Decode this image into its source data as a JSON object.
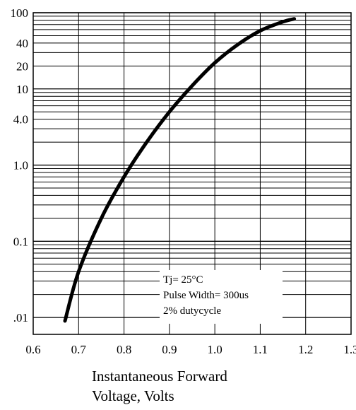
{
  "chart_data": {
    "type": "line",
    "xlabel_lines": [
      "Instantaneous Forward",
      "Voltage, Volts"
    ],
    "x_ticks": [
      "0.6",
      "0.7",
      "0.8",
      "0.9",
      "1.0",
      "1.1",
      "1.2",
      "1.3"
    ],
    "y_ticks": [
      {
        "value": 100,
        "label": "100"
      },
      {
        "value": 40,
        "label": "40"
      },
      {
        "value": 20,
        "label": "20"
      },
      {
        "value": 10,
        "label": "10"
      },
      {
        "value": 4,
        "label": "4.0"
      },
      {
        "value": 1,
        "label": "1.0"
      },
      {
        "value": 0.1,
        "label": "0.1"
      },
      {
        "value": 0.01,
        "label": ".01"
      }
    ],
    "xlim": [
      0.6,
      1.3
    ],
    "ylim": [
      0.006,
      100
    ],
    "y_scale": "log",
    "grid": true,
    "series": [
      {
        "x": [
          0.67,
          0.7,
          0.75,
          0.8,
          0.85,
          0.9,
          0.95,
          1.0,
          1.05,
          1.1,
          1.15,
          1.175
        ],
        "values": [
          0.009,
          0.04,
          0.2,
          0.7,
          2.0,
          5.0,
          11,
          22,
          38,
          58,
          76,
          83
        ]
      }
    ],
    "annotation": {
      "lines": [
        "Tj= 25°C",
        "Pulse Width= 300us",
        "2% dutycycle"
      ],
      "position": "bottom-right"
    }
  }
}
